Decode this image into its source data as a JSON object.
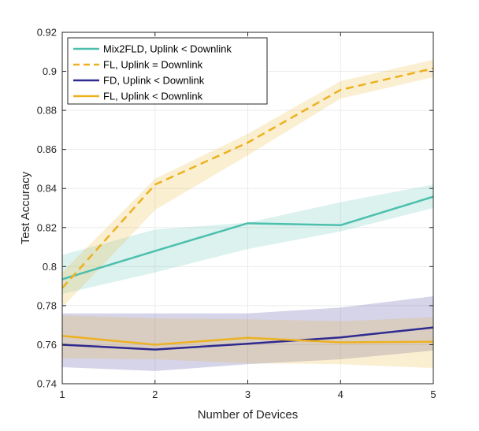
{
  "chart_data": {
    "type": "line",
    "xlabel": "Number of Devices",
    "ylabel": "Test Accuracy",
    "xlim": [
      1,
      5
    ],
    "ylim": [
      0.74,
      0.92
    ],
    "xticks": [
      "1",
      "2",
      "3",
      "4",
      "5"
    ],
    "yticks": [
      "0.74",
      "0.76",
      "0.78",
      "0.8",
      "0.82",
      "0.84",
      "0.86",
      "0.88",
      "0.9",
      "0.92"
    ],
    "grid": true,
    "legend_position": "top-left",
    "x": [
      1,
      2,
      3,
      4,
      5
    ],
    "series": [
      {
        "name": "Mix2FLD, Uplink < Downlink",
        "color": "#4dbfad",
        "style": "solid",
        "values": [
          0.7935,
          0.808,
          0.8222,
          0.8212,
          0.8358
        ],
        "lower": [
          0.786,
          0.797,
          0.809,
          0.818,
          0.83
        ],
        "upper": [
          0.806,
          0.819,
          0.8225,
          0.833,
          0.842
        ]
      },
      {
        "name": "FL, Uplink = Downlink",
        "color": "#edb120",
        "style": "dashed",
        "values": [
          0.789,
          0.842,
          0.8635,
          0.8905,
          0.9015
        ],
        "lower": [
          0.779,
          0.829,
          0.857,
          0.886,
          0.897
        ],
        "upper": [
          0.797,
          0.845,
          0.868,
          0.895,
          0.906
        ]
      },
      {
        "name": "FD, Uplink < Downlink",
        "color": "#2e2a8f",
        "style": "solid",
        "values": [
          0.76,
          0.7575,
          0.7605,
          0.7637,
          0.7688
        ],
        "lower": [
          0.7485,
          0.7465,
          0.75,
          0.7525,
          0.757
        ],
        "upper": [
          0.776,
          0.776,
          0.776,
          0.779,
          0.7848
        ]
      },
      {
        "name": "FL, Uplink < Downlink",
        "color": "#edb120",
        "style": "solid",
        "values": [
          0.7645,
          0.76,
          0.7635,
          0.7612,
          0.7615
        ],
        "lower": [
          0.753,
          0.7525,
          0.7505,
          0.75,
          0.748
        ],
        "upper": [
          0.775,
          0.7735,
          0.773,
          0.772,
          0.774
        ]
      }
    ]
  }
}
